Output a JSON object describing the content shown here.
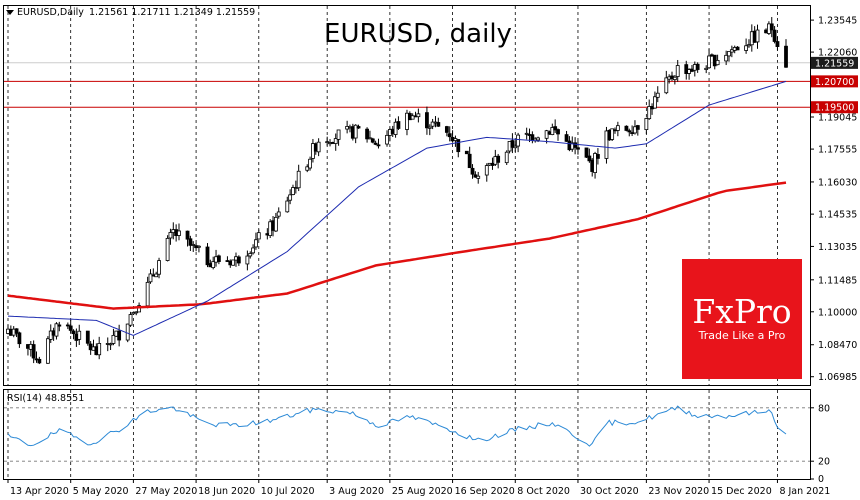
{
  "header": {
    "symbol_label": "EURUSD,Daily",
    "ohlc": "1.21561 1.21711 1.21349 1.21559",
    "chart_title": "EURUSD, daily"
  },
  "brand": {
    "logo_text": "FxPro",
    "tagline": "Trade Like a Pro",
    "color": "#e8141b"
  },
  "rsi_panel": {
    "label": "RSI(14) 48.8551"
  },
  "colors": {
    "ma_slow": "#e01010",
    "ma_fast": "#1d2bb0",
    "rsi": "#2d8ad6",
    "level": "#c80000",
    "candle": "#000000"
  },
  "chart_data": [
    {
      "type": "candlestick",
      "title": "EURUSD, daily",
      "x_range": [
        "2020-04-13",
        "2021-01-11"
      ],
      "ylim": [
        1.066,
        1.242
      ],
      "grid": "dashed vertical lines",
      "x_tick_labels": [
        "13 Apr 2020",
        "5 May 2020",
        "27 May 2020",
        "18 Jun 2020",
        "10 Jul 2020",
        "3 Aug 2020",
        "25 Aug 2020",
        "16 Sep 2020",
        "8 Oct 2020",
        "30 Oct 2020",
        "23 Nov 2020",
        "15 Dec 2020",
        "8 Jan 2021"
      ],
      "y_tick_labels": [
        "1.23545",
        "1.22060",
        "1.19045",
        "1.17555",
        "1.16030",
        "1.14535",
        "1.13035",
        "1.11485",
        "1.10000",
        "1.08470",
        "1.06985"
      ],
      "price_tags": [
        {
          "label": "1.21559",
          "value": 1.21559,
          "style": "dark"
        },
        {
          "label": "1.20700",
          "value": 1.207,
          "style": "red"
        },
        {
          "label": "1.19500",
          "value": 1.195,
          "style": "red"
        }
      ],
      "horizontal_levels": [
        1.207,
        1.195
      ],
      "price_anchors": [
        [
          "2020-04-13",
          1.092
        ],
        [
          "2020-04-24",
          1.078
        ],
        [
          "2020-05-01",
          1.096
        ],
        [
          "2020-05-14",
          1.081
        ],
        [
          "2020-05-22",
          1.09
        ],
        [
          "2020-06-01",
          1.112
        ],
        [
          "2020-06-10",
          1.137
        ],
        [
          "2020-06-22",
          1.124
        ],
        [
          "2020-07-02",
          1.124
        ],
        [
          "2020-07-15",
          1.14
        ],
        [
          "2020-07-31",
          1.18
        ],
        [
          "2020-08-14",
          1.184
        ],
        [
          "2020-08-21",
          1.178
        ],
        [
          "2020-09-01",
          1.192
        ],
        [
          "2020-09-15",
          1.183
        ],
        [
          "2020-09-25",
          1.163
        ],
        [
          "2020-10-09",
          1.18
        ],
        [
          "2020-10-21",
          1.185
        ],
        [
          "2020-11-04",
          1.168
        ],
        [
          "2020-11-09",
          1.182
        ],
        [
          "2020-11-20",
          1.187
        ],
        [
          "2020-12-04",
          1.213
        ],
        [
          "2020-12-11",
          1.213
        ],
        [
          "2020-12-22",
          1.221
        ],
        [
          "2021-01-06",
          1.232
        ],
        [
          "2021-01-11",
          1.2156
        ]
      ],
      "ma_fast_anchors": [
        [
          "2020-04-13",
          1.098
        ],
        [
          "2020-05-14",
          1.096
        ],
        [
          "2020-05-27",
          1.089
        ],
        [
          "2020-06-22",
          1.105
        ],
        [
          "2020-07-20",
          1.128
        ],
        [
          "2020-08-14",
          1.158
        ],
        [
          "2020-09-07",
          1.176
        ],
        [
          "2020-09-28",
          1.181
        ],
        [
          "2020-10-20",
          1.179
        ],
        [
          "2020-11-12",
          1.176
        ],
        [
          "2020-11-23",
          1.178
        ],
        [
          "2020-12-15",
          1.196
        ],
        [
          "2021-01-11",
          1.207
        ]
      ],
      "ma_slow_anchors": [
        [
          "2020-04-13",
          1.1075
        ],
        [
          "2020-05-20",
          1.1015
        ],
        [
          "2020-06-20",
          1.1035
        ],
        [
          "2020-07-20",
          1.1085
        ],
        [
          "2020-08-20",
          1.1215
        ],
        [
          "2020-09-20",
          1.128
        ],
        [
          "2020-10-20",
          1.134
        ],
        [
          "2020-11-20",
          1.143
        ],
        [
          "2020-12-20",
          1.156
        ],
        [
          "2021-01-11",
          1.16
        ]
      ]
    },
    {
      "type": "line",
      "title": "RSI(14) 48.8551",
      "ylim": [
        0,
        100
      ],
      "levels": [
        80,
        20
      ],
      "y_tick_labels": [
        "80",
        "20",
        "0"
      ],
      "rsi_anchors": [
        [
          "2020-04-13",
          48
        ],
        [
          "2020-04-21",
          38
        ],
        [
          "2020-05-01",
          54
        ],
        [
          "2020-05-12",
          40
        ],
        [
          "2020-05-22",
          56
        ],
        [
          "2020-06-01",
          76
        ],
        [
          "2020-06-10",
          80
        ],
        [
          "2020-06-22",
          62
        ],
        [
          "2020-07-02",
          60
        ],
        [
          "2020-07-15",
          66
        ],
        [
          "2020-07-29",
          78
        ],
        [
          "2020-08-11",
          75
        ],
        [
          "2020-08-21",
          60
        ],
        [
          "2020-09-01",
          70
        ],
        [
          "2020-09-15",
          56
        ],
        [
          "2020-09-25",
          43
        ],
        [
          "2020-10-09",
          56
        ],
        [
          "2020-10-21",
          63
        ],
        [
          "2020-11-04",
          38
        ],
        [
          "2020-11-09",
          63
        ],
        [
          "2020-11-20",
          64
        ],
        [
          "2020-12-04",
          80
        ],
        [
          "2020-12-11",
          71
        ],
        [
          "2020-12-22",
          71
        ],
        [
          "2021-01-06",
          77
        ],
        [
          "2021-01-08",
          57
        ],
        [
          "2021-01-11",
          49
        ]
      ]
    }
  ]
}
